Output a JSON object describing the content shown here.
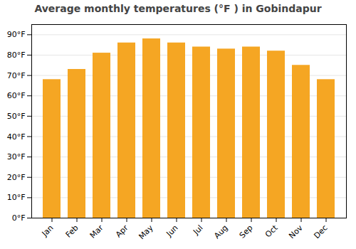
{
  "chart_data": {
    "type": "bar",
    "title": "Average monthly temperatures (°F ) in Gobindapur",
    "categories": [
      "Jan",
      "Feb",
      "Mar",
      "Apr",
      "May",
      "Jun",
      "Jul",
      "Aug",
      "Sep",
      "Oct",
      "Nov",
      "Dec"
    ],
    "values": [
      68,
      73,
      81,
      86,
      88,
      86,
      84,
      83,
      84,
      82,
      75,
      68
    ],
    "color": "#F5A623",
    "ylim": [
      0,
      95
    ],
    "yticks": [
      {
        "value": 0,
        "label": "0°F"
      },
      {
        "value": 10,
        "label": "10°F"
      },
      {
        "value": 20,
        "label": "20°F"
      },
      {
        "value": 30,
        "label": "30°F"
      },
      {
        "value": 40,
        "label": "40°F"
      },
      {
        "value": 50,
        "label": "50°F"
      },
      {
        "value": 60,
        "label": "60°F"
      },
      {
        "value": 70,
        "label": "70°F"
      },
      {
        "value": 80,
        "label": "80°F"
      },
      {
        "value": 90,
        "label": "90°F"
      }
    ],
    "grid": true
  }
}
